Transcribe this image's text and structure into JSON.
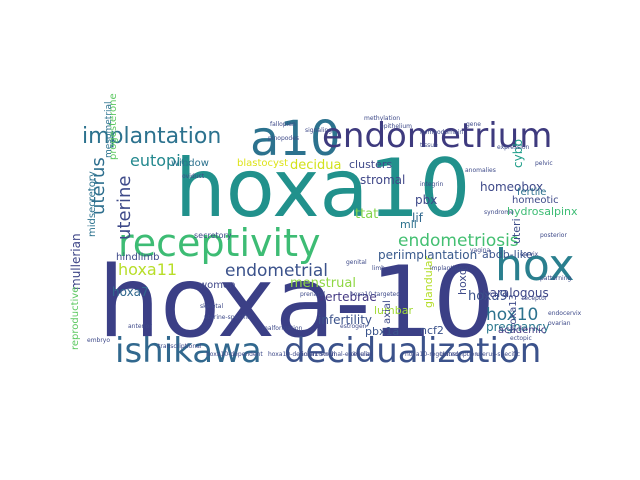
{
  "words": [
    {
      "text": "hoxa10",
      "color": "#21918c"
    },
    {
      "text": "hoxa-10",
      "color": "#3b3f86"
    },
    {
      "text": "a10",
      "color": "#2c728e"
    },
    {
      "text": "endometrium",
      "color": "#3e3a7e"
    },
    {
      "text": "receptivity",
      "color": "#3dbc74"
    },
    {
      "text": "hox",
      "color": "#2a7f8e"
    },
    {
      "text": "ishikawa",
      "color": "#31688e"
    },
    {
      "text": "decidualization",
      "color": "#3b528b"
    },
    {
      "text": "implantation",
      "color": "#2c728e"
    },
    {
      "text": "eutopic",
      "color": "#23888e"
    },
    {
      "text": "uterus",
      "color": "#2e6f8e"
    },
    {
      "text": "uterine",
      "color": "#3e4a89"
    },
    {
      "text": "endometriosis",
      "color": "#43bf71"
    },
    {
      "text": "endometrial",
      "color": "#3b528b"
    },
    {
      "text": "hoxa11",
      "color": "#b8de29"
    },
    {
      "text": "hoxa7",
      "color": "#31688e"
    },
    {
      "text": "homeobox",
      "color": "#3e4989"
    },
    {
      "text": "stromal",
      "color": "#3f4788"
    },
    {
      "text": "decidua",
      "color": "#d2e21b"
    },
    {
      "text": "ttat",
      "color": "#84d44b"
    },
    {
      "text": "periimplantation",
      "color": "#38598c"
    },
    {
      "text": "abdb-like",
      "color": "#3a548c"
    },
    {
      "text": "hoxa9",
      "color": "#3b528b"
    },
    {
      "text": "hox10",
      "color": "#2c728e"
    },
    {
      "text": "paralogous",
      "color": "#3f4788"
    },
    {
      "text": "pregnancy",
      "color": "#2a788e"
    },
    {
      "text": "infertility",
      "color": "#3b528b"
    },
    {
      "text": "menstrual",
      "color": "#8fd744"
    },
    {
      "text": "vertebrae",
      "color": "#443983"
    },
    {
      "text": "mullerian",
      "color": "#3f4788"
    },
    {
      "text": "hoxd",
      "color": "#3e4a89"
    },
    {
      "text": "lumbar",
      "color": "#a2da37"
    },
    {
      "text": "uteri",
      "color": "#3d4e8a"
    },
    {
      "text": "cybb",
      "color": "#1f9e89"
    },
    {
      "text": "lif",
      "color": "#31688e"
    },
    {
      "text": "pbx",
      "color": "#3e4989"
    },
    {
      "text": "mll",
      "color": "#2c728e"
    },
    {
      "text": "glandular",
      "color": "#b5de2b"
    },
    {
      "text": "hydrosalpinx",
      "color": "#3dbc74"
    },
    {
      "text": "fertile",
      "color": "#2c728e"
    },
    {
      "text": "academic",
      "color": "#443a83"
    },
    {
      "text": "ncf2",
      "color": "#3b528b"
    },
    {
      "text": "pbx1a",
      "color": "#3a548c"
    },
    {
      "text": "axial",
      "color": "#3e4a89"
    },
    {
      "text": "reproductive",
      "color": "#5ec962"
    },
    {
      "text": "clusters",
      "color": "#3e4989"
    },
    {
      "text": "blastocyst",
      "color": "#dde318"
    },
    {
      "text": "women",
      "color": "#3f4788"
    },
    {
      "text": "window",
      "color": "#2c728e"
    },
    {
      "text": "hindlimb",
      "color": "#3e4a89"
    },
    {
      "text": "homeotic",
      "color": "#3e4a89"
    },
    {
      "text": "midsecretory",
      "color": "#2c728e"
    },
    {
      "text": "progesterone",
      "color": "#5ec962"
    },
    {
      "text": "mesometrial",
      "color": "#2c728e"
    },
    {
      "text": "hoxa13",
      "color": "#3e4a89"
    },
    {
      "text": "secretory",
      "color": "#3e4a89"
    },
    {
      "text": "epithelium",
      "color": "#3e4a89"
    },
    {
      "text": "hoxa10-deficient",
      "color": "#3e4a89"
    },
    {
      "text": "embryo",
      "color": "#3e4a89"
    },
    {
      "text": "transcriptional",
      "color": "#3e4a89"
    },
    {
      "text": "tissue",
      "color": "#3e4a89"
    },
    {
      "text": "gene",
      "color": "#3e4a89"
    },
    {
      "text": "expression",
      "color": "#3e4a89"
    },
    {
      "text": "hoxa10-null",
      "color": "#3e4a89"
    },
    {
      "text": "cellular",
      "color": "#3e4a89"
    },
    {
      "text": "signaling",
      "color": "#3e4a89"
    },
    {
      "text": "pinopodes",
      "color": "#3e4a89"
    },
    {
      "text": "estrogen",
      "color": "#3e4a89"
    },
    {
      "text": "genital",
      "color": "#3e4a89"
    },
    {
      "text": "uterine-specific",
      "color": "#3e4a89"
    },
    {
      "text": "hoxa10-regulated",
      "color": "#3e4a89"
    },
    {
      "text": "methylation",
      "color": "#3e4a89"
    },
    {
      "text": "fallopian",
      "color": "#3e4a89"
    },
    {
      "text": "oviduct",
      "color": "#3e4a89"
    },
    {
      "text": "posterior",
      "color": "#3e4a89"
    },
    {
      "text": "anterior",
      "color": "#3e4a89"
    },
    {
      "text": "implanting",
      "color": "#3e4a89"
    },
    {
      "text": "ovarian",
      "color": "#3e4a89"
    },
    {
      "text": "prenatal",
      "color": "#3e4a89"
    },
    {
      "text": "uterus-specific",
      "color": "#3e4a89"
    },
    {
      "text": "stromal-epithelial",
      "color": "#3e4a89"
    },
    {
      "text": "hoxa10-dependent",
      "color": "#3e4a89"
    },
    {
      "text": "syndrome",
      "color": "#3e4a89"
    },
    {
      "text": "pelvic",
      "color": "#3e4a89"
    },
    {
      "text": "homeodomain",
      "color": "#3e4a89"
    },
    {
      "text": "transcription",
      "color": "#3e4a89"
    },
    {
      "text": "receptor",
      "color": "#3e4a89"
    },
    {
      "text": "integrin",
      "color": "#3e4a89"
    },
    {
      "text": "anomalies",
      "color": "#3e4a89"
    },
    {
      "text": "malformation",
      "color": "#3e4a89"
    },
    {
      "text": "patterning",
      "color": "#3e4a89"
    },
    {
      "text": "hoxa10-targeted",
      "color": "#3e4a89"
    },
    {
      "text": "limb",
      "color": "#3e4a89"
    },
    {
      "text": "skeletal",
      "color": "#3e4a89"
    },
    {
      "text": "sacral",
      "color": "#3e4a89"
    },
    {
      "text": "cervix",
      "color": "#3e4a89"
    },
    {
      "text": "vagina",
      "color": "#3e4a89"
    },
    {
      "text": "ectopic",
      "color": "#3e4a89"
    },
    {
      "text": "endocervix",
      "color": "#3e4a89"
    }
  ]
}
